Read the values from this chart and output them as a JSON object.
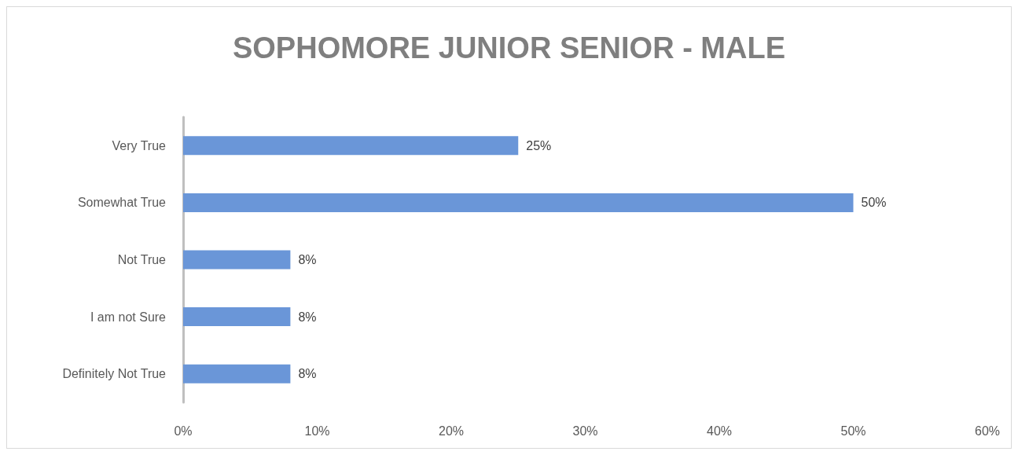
{
  "chart_data": {
    "type": "bar",
    "orientation": "horizontal",
    "title": "SOPHOMORE JUNIOR SENIOR - MALE",
    "categories": [
      "Very True",
      "Somewhat True",
      "Not True",
      "I am not Sure",
      "Definitely Not True"
    ],
    "values": [
      25,
      50,
      8,
      8,
      8
    ],
    "value_labels": [
      "25%",
      "50%",
      "8%",
      "8%",
      "8%"
    ],
    "color": "#6a96d8",
    "xlim": [
      0,
      60
    ],
    "xticks": [
      {
        "value": 0,
        "label": "0%"
      },
      {
        "value": 10,
        "label": "10%"
      },
      {
        "value": 20,
        "label": "20%"
      },
      {
        "value": 30,
        "label": "30%"
      },
      {
        "value": 40,
        "label": "40%"
      },
      {
        "value": 50,
        "label": "50%"
      },
      {
        "value": 60,
        "label": "60%"
      }
    ],
    "grid": false
  }
}
